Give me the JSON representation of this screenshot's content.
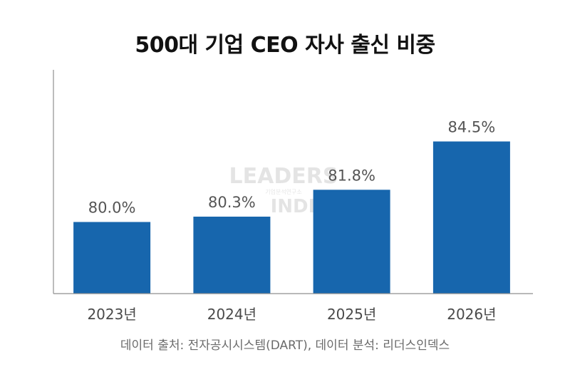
{
  "chart_data": {
    "type": "bar",
    "title": "500대 기업 CEO 자사 출신 비중",
    "categories": [
      "2023년",
      "2024년",
      "2025년",
      "2026년"
    ],
    "values": [
      80.0,
      80.3,
      81.8,
      84.5
    ],
    "value_labels": [
      "80.0%",
      "80.3%",
      "81.8%",
      "84.5%"
    ],
    "xlabel": "",
    "ylabel": "",
    "ylim": [
      76.0,
      88.5
    ],
    "grid": false,
    "legend": "none",
    "bar_color": "#1766AD"
  },
  "source": "데이터 출처: 전자공시시스템(DART), 데이터 분석: 리더스인덱스",
  "watermark": {
    "main": "LEADERS",
    "sub": "기업분석연구소",
    "bottom": "INDEX"
  }
}
